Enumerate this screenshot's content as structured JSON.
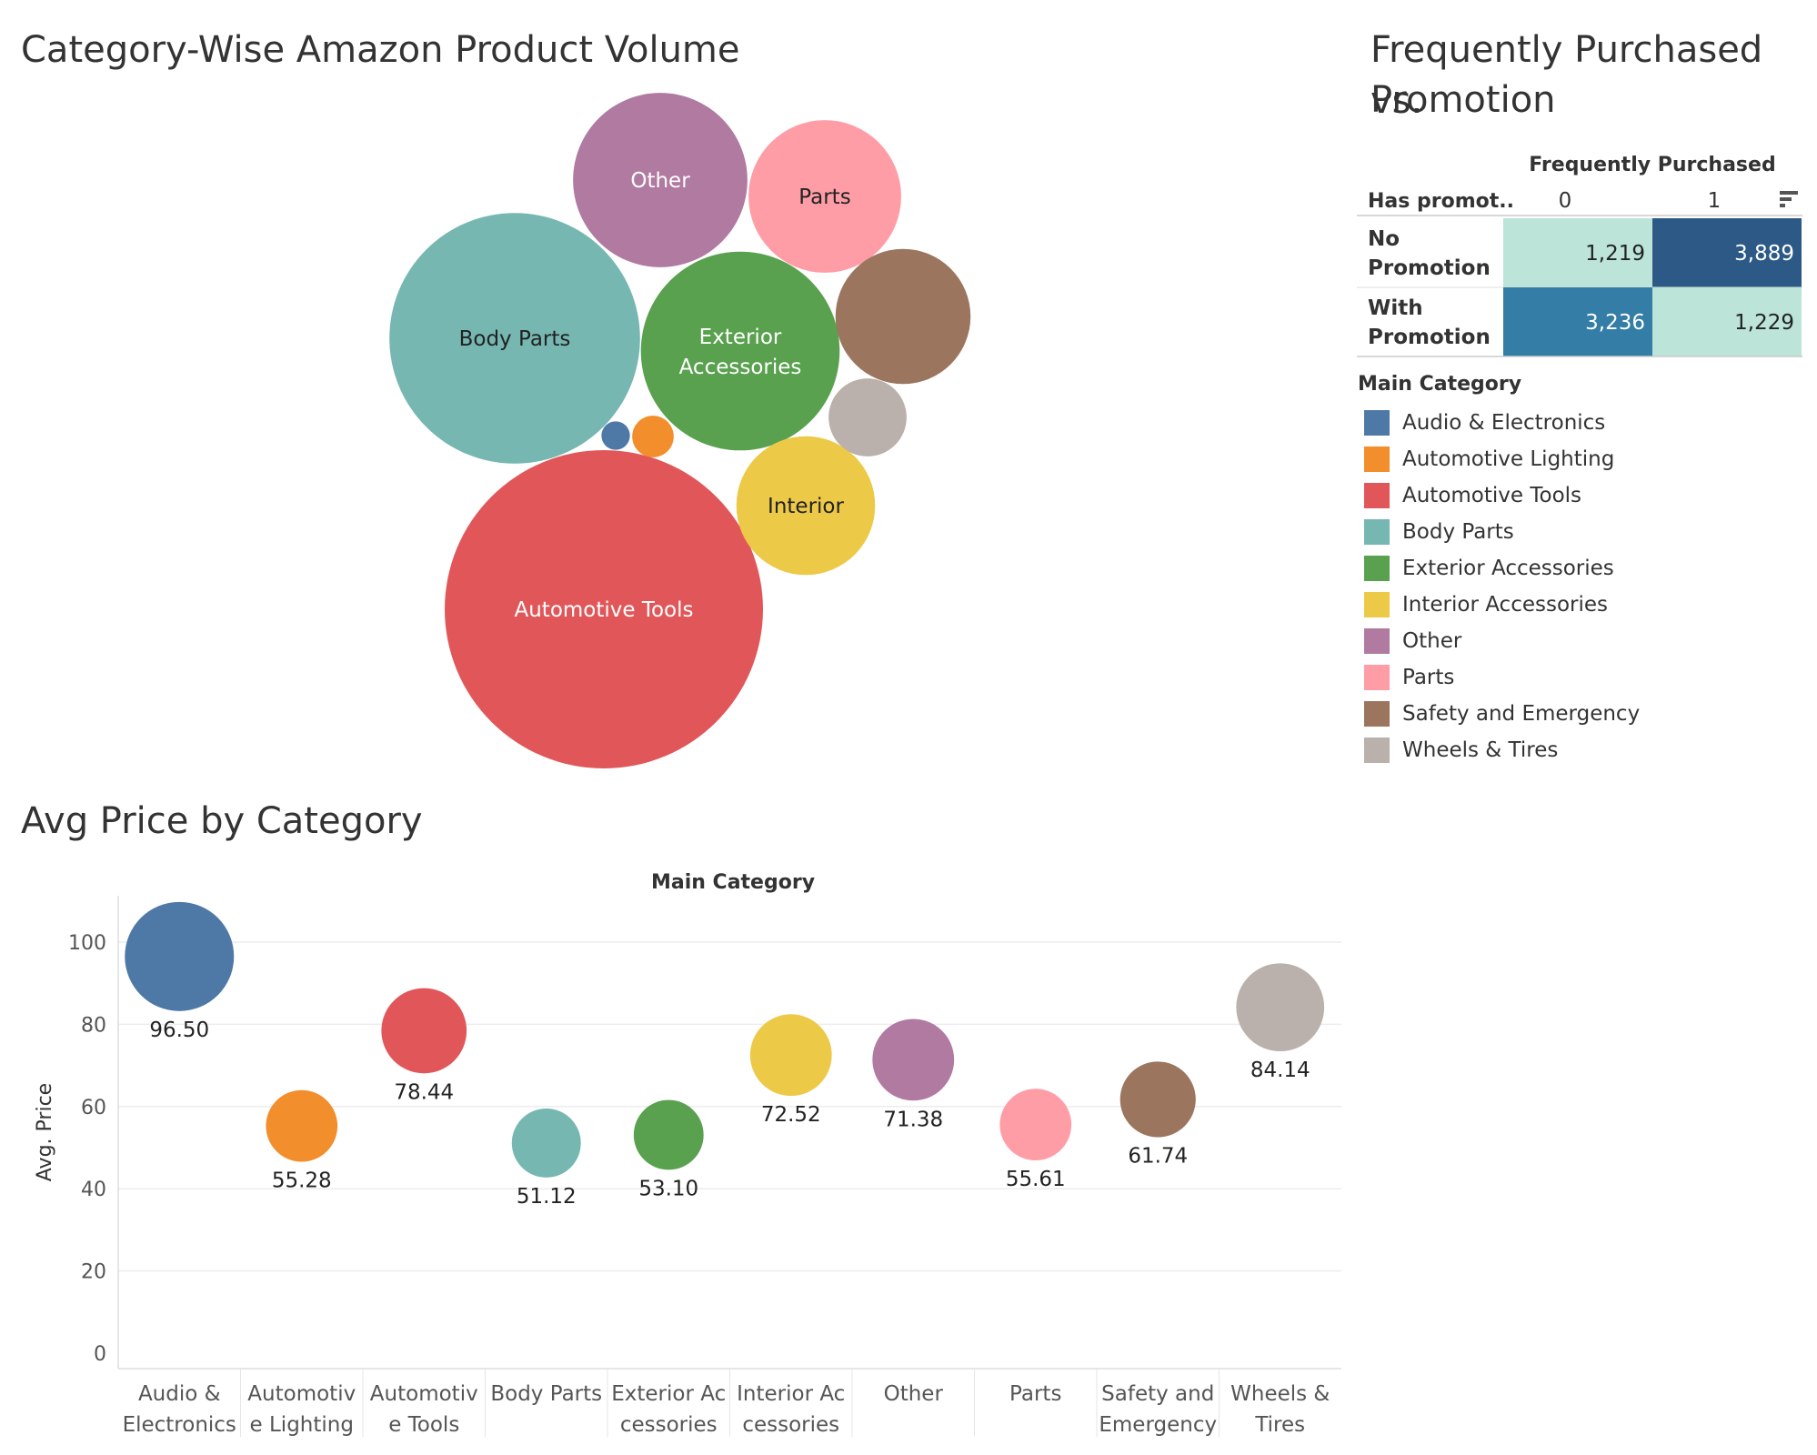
{
  "titles": {
    "bubble": "Category-Wise Amazon Product Volume",
    "heatmap_line1": "Frequently Purchased vs.",
    "heatmap_line2": "Promotion",
    "avgprice": "Avg Price by Category"
  },
  "chart_data": [
    {
      "type": "bubble",
      "title": "Category-Wise Amazon Product Volume",
      "bubbles": [
        {
          "category": "Automotive Tools",
          "label": "Automotive Tools",
          "relative_size": 1.0,
          "color": "#E15759",
          "label_color": "#ffffff"
        },
        {
          "category": "Body Parts",
          "label": "Body Parts",
          "relative_size": 0.62,
          "color": "#76B7B2",
          "label_color": "#222222"
        },
        {
          "category": "Exterior Accessories",
          "label_line1": "Exterior",
          "label_line2": "Accessories",
          "relative_size": 0.39,
          "color": "#59A14F",
          "label_color": "#ffffff"
        },
        {
          "category": "Other",
          "label": "Other",
          "relative_size": 0.3,
          "color": "#B07AA1",
          "label_color": "#ffffff"
        },
        {
          "category": "Parts",
          "label": "Parts",
          "relative_size": 0.23,
          "color": "#FF9DA7",
          "label_color": "#222222"
        },
        {
          "category": "Safety and Emergency",
          "label": "",
          "relative_size": 0.18,
          "color": "#9C755F",
          "label_color": "#ffffff"
        },
        {
          "category": "Interior Accessories",
          "label": "Interior",
          "relative_size": 0.19,
          "color": "#EDC948",
          "label_color": "#222222"
        },
        {
          "category": "Wheels & Tires",
          "label": "",
          "relative_size": 0.06,
          "color": "#BAB0AC",
          "label_color": "#222222"
        },
        {
          "category": "Automotive Lighting",
          "label": "",
          "relative_size": 0.017,
          "color": "#F28E2B",
          "label_color": "#222222"
        },
        {
          "category": "Audio & Electronics",
          "label": "",
          "relative_size": 0.008,
          "color": "#4E79A7",
          "label_color": "#222222"
        }
      ]
    },
    {
      "type": "heatmap",
      "title": "Frequently Purchased vs. Promotion",
      "column_header": "Frequently Purchased",
      "row_header": "Has promot..",
      "columns": [
        "0",
        "1"
      ],
      "rows": [
        {
          "line1": "No",
          "line2": "Promotion",
          "values": [
            1219,
            3889
          ],
          "display": [
            "1,219",
            "3,889"
          ],
          "colors": [
            "#BCE4D8",
            "#2C5985"
          ],
          "text_colors": [
            "#222222",
            "#ffffff"
          ]
        },
        {
          "line1": "With",
          "line2": "Promotion",
          "values": [
            3236,
            1229
          ],
          "display": [
            "3,236",
            "1,229"
          ],
          "colors": [
            "#337DA6",
            "#BCE4D8"
          ],
          "text_colors": [
            "#ffffff",
            "#222222"
          ]
        }
      ]
    },
    {
      "type": "scatter",
      "title": "Avg Price by Category",
      "xlabel": "Main Category",
      "ylabel": "Avg. Price",
      "ylim": [
        0,
        112
      ],
      "yticks": [
        0,
        20,
        40,
        60,
        80,
        100
      ],
      "categories": [
        {
          "line1": "Audio &",
          "line2": "Electronics",
          "value": 96.5,
          "label": "96.50",
          "color": "#4E79A7",
          "size": 1.0
        },
        {
          "line1": "Automotiv",
          "line2": "e Lighting",
          "value": 55.28,
          "label": "55.28",
          "color": "#F28E2B",
          "size": 0.43
        },
        {
          "line1": "Automotiv",
          "line2": "e Tools",
          "value": 78.44,
          "label": "78.44",
          "color": "#E15759",
          "size": 0.61
        },
        {
          "line1": "Body Parts",
          "line2": "",
          "value": 51.12,
          "label": "51.12",
          "color": "#76B7B2",
          "size": 0.4
        },
        {
          "line1": "Exterior Ac",
          "line2": "cessories",
          "value": 53.1,
          "label": "53.10",
          "color": "#59A14F",
          "size": 0.41
        },
        {
          "line1": "Interior Ac",
          "line2": "cessories",
          "value": 72.52,
          "label": "72.52",
          "color": "#EDC948",
          "size": 0.56
        },
        {
          "line1": "Other",
          "line2": "",
          "value": 71.38,
          "label": "71.38",
          "color": "#B07AA1",
          "size": 0.56
        },
        {
          "line1": "Parts",
          "line2": "",
          "value": 55.61,
          "label": "55.61",
          "color": "#FF9DA7",
          "size": 0.43
        },
        {
          "line1": "Safety and",
          "line2": "Emergency",
          "value": 61.74,
          "label": "61.74",
          "color": "#9C755F",
          "size": 0.48
        },
        {
          "line1": "Wheels &",
          "line2": "Tires",
          "value": 84.14,
          "label": "84.14",
          "color": "#BAB0AC",
          "size": 0.65
        }
      ]
    }
  ],
  "legend": {
    "title": "Main Category",
    "items": [
      {
        "label": "Audio & Electronics",
        "color": "#4E79A7"
      },
      {
        "label": "Automotive Lighting",
        "color": "#F28E2B"
      },
      {
        "label": "Automotive Tools",
        "color": "#E15759"
      },
      {
        "label": "Body Parts",
        "color": "#76B7B2"
      },
      {
        "label": "Exterior Accessories",
        "color": "#59A14F"
      },
      {
        "label": "Interior Accessories",
        "color": "#EDC948"
      },
      {
        "label": "Other",
        "color": "#B07AA1"
      },
      {
        "label": "Parts",
        "color": "#FF9DA7"
      },
      {
        "label": "Safety and Emergency",
        "color": "#9C755F"
      },
      {
        "label": "Wheels & Tires",
        "color": "#BAB0AC"
      }
    ]
  }
}
